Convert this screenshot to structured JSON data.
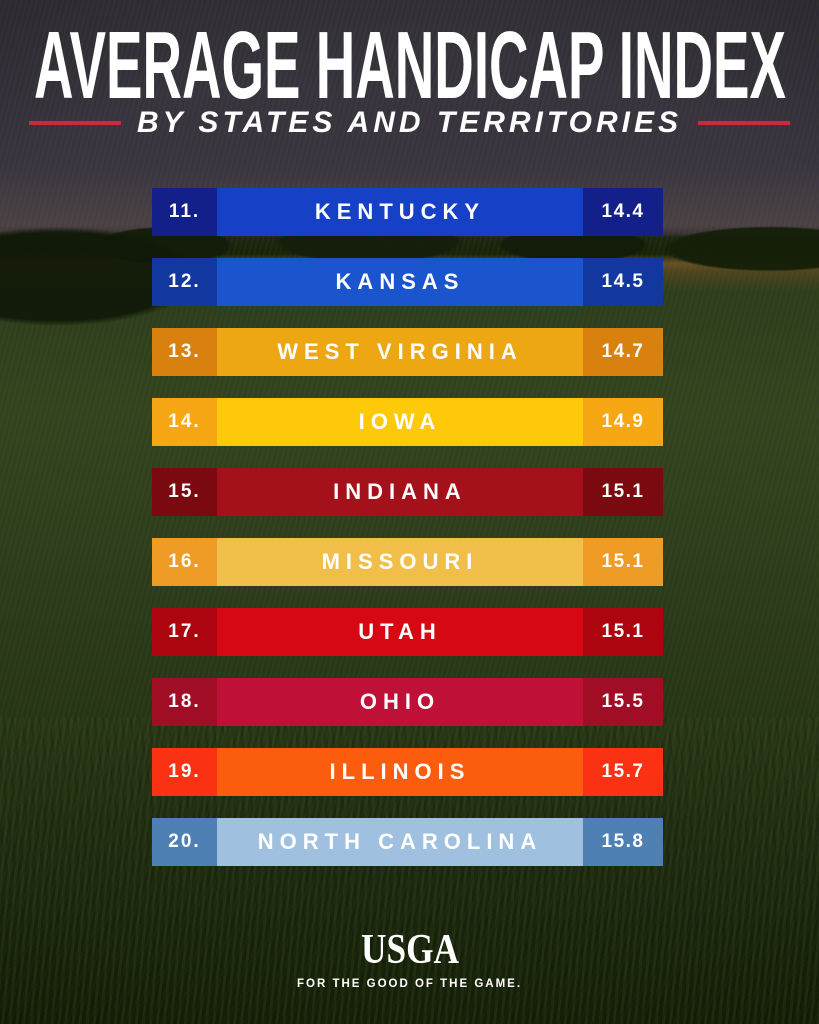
{
  "header": {
    "title": "AVERAGE HANDICAP INDEX",
    "subtitle": "BY STATES AND TERRITORIES"
  },
  "rows": [
    {
      "rank": "11.",
      "state": "KENTUCKY",
      "value": "14.4",
      "bar_color": "#1641c6",
      "box_color": "#14208a"
    },
    {
      "rank": "12.",
      "state": "KANSAS",
      "value": "14.5",
      "bar_color": "#1b55cd",
      "box_color": "#12389f"
    },
    {
      "rank": "13.",
      "state": "WEST VIRGINIA",
      "value": "14.7",
      "bar_color": "#eda712",
      "box_color": "#d8810f"
    },
    {
      "rank": "14.",
      "state": "IOWA",
      "value": "14.9",
      "bar_color": "#fec908",
      "box_color": "#f6a713"
    },
    {
      "rank": "15.",
      "state": "INDIANA",
      "value": "15.1",
      "bar_color": "#a5111a",
      "box_color": "#7b0a10"
    },
    {
      "rank": "16.",
      "state": "MISSOURI",
      "value": "15.1",
      "bar_color": "#f1bf49",
      "box_color": "#ee9c25"
    },
    {
      "rank": "17.",
      "state": "UTAH",
      "value": "15.1",
      "bar_color": "#d50813",
      "box_color": "#ad050f"
    },
    {
      "rank": "18.",
      "state": "OHIO",
      "value": "15.5",
      "bar_color": "#bf1037",
      "box_color": "#a00d24"
    },
    {
      "rank": "19.",
      "state": "ILLINOIS",
      "value": "15.7",
      "bar_color": "#fc5c0d",
      "box_color": "#fa3113"
    },
    {
      "rank": "20.",
      "state": "NORTH CAROLINA",
      "value": "15.8",
      "bar_color": "#9fc0de",
      "box_color": "#4e80b4"
    }
  ],
  "footer": {
    "logo_text": "USGA",
    "tagline": "FOR THE GOOD OF THE GAME."
  },
  "colors": {
    "accent_line": "#ca2a3a",
    "text": "#ffffff"
  },
  "chart_data": {
    "type": "table",
    "title": "AVERAGE HANDICAP INDEX",
    "subtitle": "BY STATES AND TERRITORIES",
    "columns": [
      "rank",
      "state",
      "average_handicap_index"
    ],
    "ranks": [
      11,
      12,
      13,
      14,
      15,
      16,
      17,
      18,
      19,
      20
    ],
    "categories": [
      "Kentucky",
      "Kansas",
      "West Virginia",
      "Iowa",
      "Indiana",
      "Missouri",
      "Utah",
      "Ohio",
      "Illinois",
      "North Carolina"
    ],
    "values": [
      14.4,
      14.5,
      14.7,
      14.9,
      15.1,
      15.1,
      15.1,
      15.5,
      15.7,
      15.8
    ],
    "legend": "none",
    "source_brand": "USGA"
  }
}
